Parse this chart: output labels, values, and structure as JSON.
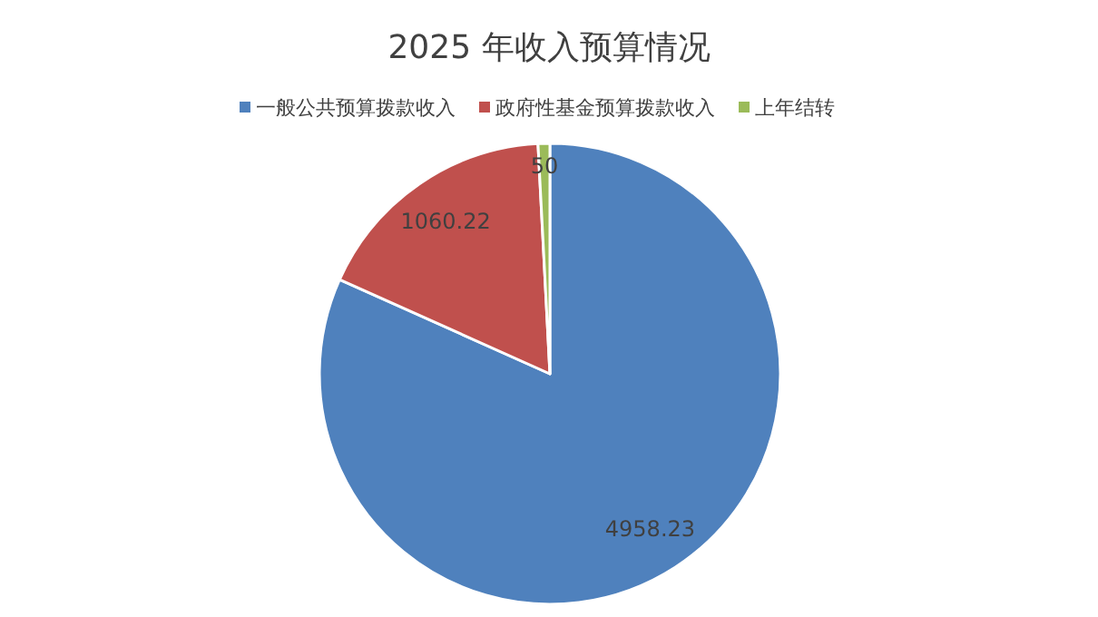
{
  "chart_data": {
    "type": "pie",
    "title": "2025 年收入预算情况",
    "categories": [
      "一般公共预算拨款收入",
      "政府性基金预算拨款收入",
      "上年结转"
    ],
    "values": [
      4958.23,
      1060.22,
      50
    ],
    "colors": [
      "#4f81bd",
      "#c0504d",
      "#9bbb59"
    ],
    "data_labels": true,
    "legend": "top"
  }
}
